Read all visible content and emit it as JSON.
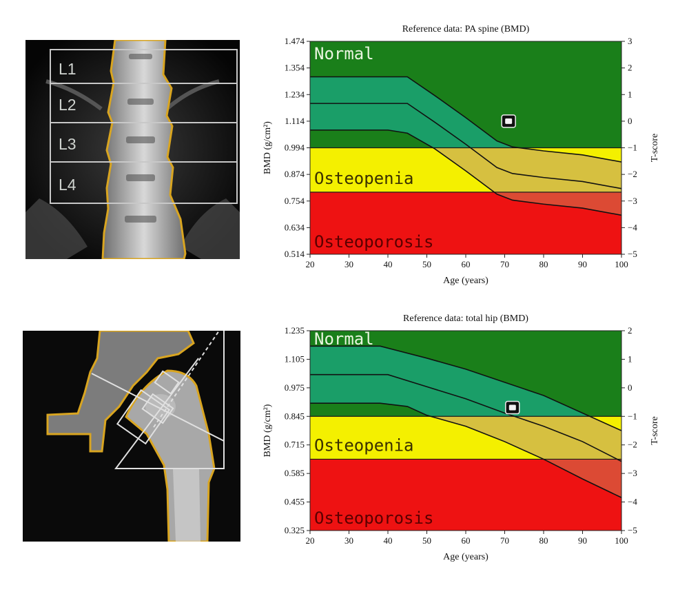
{
  "spine_scan": {
    "labels": [
      "L1",
      "L2",
      "L3",
      "L4"
    ]
  },
  "colors": {
    "normal_zone": "#1a7f1a",
    "normal_band": "#1a9e68",
    "osteopenia_zone": "#f4f000",
    "osteopenia_band": "#d6c040",
    "osteoporosis_zone": "#ee1212",
    "osteoporosis_band": "#dc4a34",
    "curve": "#111111",
    "outline": "#d9a520"
  },
  "chart_data": [
    {
      "type": "area",
      "title": "Reference data: PA spine (BMD)",
      "xlabel": "Age (years)",
      "ylabel": "BMD (g/cm²)",
      "ylabel_right": "T-score",
      "xlim": [
        20,
        100
      ],
      "ylim": [
        0.514,
        1.474
      ],
      "x_ticks": [
        "20",
        "30",
        "40",
        "50",
        "60",
        "70",
        "80",
        "90",
        "100"
      ],
      "y_ticks": [
        "0.514",
        "0.634",
        "0.754",
        "0.874",
        "0.994",
        "1.114",
        "1.234",
        "1.354",
        "1.474"
      ],
      "y2_ticks": [
        "−5",
        "−4",
        "−3",
        "−2",
        "−1",
        "0",
        "1",
        "2",
        "3"
      ],
      "zones": [
        {
          "label": "Normal",
          "from": 0.994,
          "to": 1.474
        },
        {
          "label": "Osteopenia",
          "from": 0.794,
          "to": 0.994
        },
        {
          "label": "Osteoporosis",
          "from": 0.514,
          "to": 0.794
        }
      ],
      "series": [
        {
          "x": [
            20,
            45,
            52,
            60,
            68,
            72,
            80,
            90,
            100
          ],
          "values": [
            1.314,
            1.314,
            1.23,
            1.13,
            1.025,
            0.998,
            0.98,
            0.962,
            0.93
          ]
        },
        {
          "x": [
            20,
            45,
            52,
            60,
            68,
            72,
            80,
            90,
            100
          ],
          "values": [
            1.194,
            1.194,
            1.11,
            1.01,
            0.905,
            0.878,
            0.86,
            0.842,
            0.81
          ]
        },
        {
          "x": [
            20,
            40,
            45,
            52,
            60,
            68,
            72,
            80,
            90,
            100
          ],
          "values": [
            1.074,
            1.074,
            1.06,
            0.99,
            0.89,
            0.785,
            0.758,
            0.74,
            0.722,
            0.69
          ]
        }
      ],
      "patient": {
        "x": 71,
        "y": 1.114
      }
    },
    {
      "type": "area",
      "title": "Reference data: total hip (BMD)",
      "xlabel": "Age (years)",
      "ylabel": "BMD (g/cm²)",
      "ylabel_right": "T-score",
      "xlim": [
        20,
        100
      ],
      "ylim": [
        0.325,
        1.235
      ],
      "x_ticks": [
        "20",
        "30",
        "40",
        "50",
        "60",
        "70",
        "80",
        "90",
        "100"
      ],
      "y_ticks": [
        "0.325",
        "0.455",
        "0.585",
        "0.715",
        "0.845",
        "0.975",
        "1.105",
        "1.235"
      ],
      "y2_ticks": [
        "−5",
        "−4",
        "−3",
        "−2",
        "−1",
        "0",
        "1",
        "2"
      ],
      "zones": [
        {
          "label": "Normal",
          "from": 0.845,
          "to": 1.235
        },
        {
          "label": "Osteopenia",
          "from": 0.65,
          "to": 0.845
        },
        {
          "label": "Osteoporosis",
          "from": 0.325,
          "to": 0.65
        }
      ],
      "series": [
        {
          "x": [
            20,
            38,
            50,
            60,
            70,
            80,
            90,
            100
          ],
          "values": [
            1.165,
            1.165,
            1.11,
            1.06,
            1.0,
            0.94,
            0.86,
            0.78
          ]
        },
        {
          "x": [
            20,
            40,
            50,
            60,
            70,
            80,
            90,
            100
          ],
          "values": [
            1.035,
            1.035,
            0.98,
            0.925,
            0.86,
            0.8,
            0.73,
            0.64
          ]
        },
        {
          "x": [
            20,
            38,
            45,
            50,
            60,
            70,
            80,
            90,
            100
          ],
          "values": [
            0.905,
            0.905,
            0.89,
            0.85,
            0.8,
            0.73,
            0.65,
            0.56,
            0.475
          ]
        }
      ],
      "patient": {
        "x": 72,
        "y": 0.885
      }
    }
  ]
}
